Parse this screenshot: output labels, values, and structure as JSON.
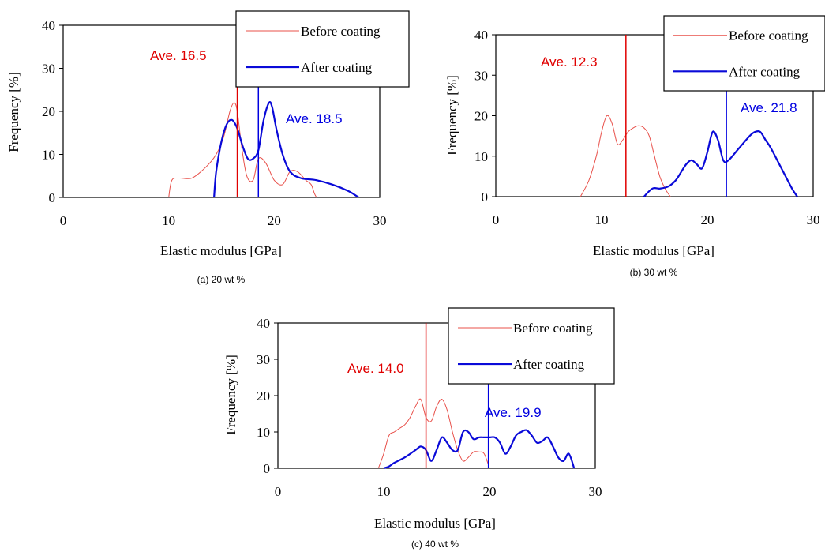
{
  "colors": {
    "before": "#e8504a",
    "after": "#0a0ad8",
    "ave_before": "#e00000",
    "ave_after": "#0000e0"
  },
  "chart_data": [
    {
      "type": "line",
      "caption": "(a) 20 wt %",
      "xlabel": "Elastic modulus [GPa]",
      "ylabel": "Frequency [%]",
      "xlim": [
        0,
        30
      ],
      "ylim": [
        0,
        40
      ],
      "xticks": [
        "0",
        "10",
        "20",
        "30"
      ],
      "yticks": [
        "0",
        "10",
        "20",
        "30",
        "40"
      ],
      "legend": [
        "Before coating",
        "After coating"
      ],
      "annotations": [
        {
          "text": "Ave. 16.5",
          "x": 16.5,
          "series": "before"
        },
        {
          "text": "Ave. 18.5",
          "x": 18.5,
          "series": "after"
        }
      ],
      "series": [
        {
          "name": "Before coating",
          "x": [
            10.0,
            10.3,
            11.0,
            12.2,
            13.5,
            14.5,
            15.2,
            15.8,
            16.2,
            16.5,
            16.9,
            17.4,
            18.0,
            18.5,
            19.2,
            20.0,
            20.8,
            21.5,
            22.2,
            23.0,
            23.5,
            23.8,
            24.0
          ],
          "y": [
            0,
            4,
            4.5,
            4.5,
            7,
            10,
            14,
            20,
            22,
            20,
            12,
            5,
            4,
            9,
            8,
            4,
            3,
            6,
            6,
            4,
            3,
            1,
            0
          ]
        },
        {
          "name": "After coating",
          "x": [
            14.3,
            14.5,
            15.0,
            15.5,
            16.0,
            16.5,
            17.0,
            17.5,
            18.0,
            18.5,
            19.0,
            19.5,
            19.8,
            20.2,
            20.8,
            21.5,
            22.5,
            24.0,
            25.5,
            27.0,
            28.0
          ],
          "y": [
            0,
            6,
            13,
            17,
            18,
            16,
            12,
            9,
            9,
            11,
            18,
            22,
            21,
            16,
            10,
            6,
            4.5,
            4,
            3,
            1.5,
            0
          ]
        }
      ]
    },
    {
      "type": "line",
      "caption": "(b) 30 wt %",
      "xlabel": "Elastic modulus [GPa]",
      "ylabel": "Frequency [%]",
      "xlim": [
        0,
        30
      ],
      "ylim": [
        0,
        40
      ],
      "xticks": [
        "0",
        "10",
        "20",
        "30"
      ],
      "yticks": [
        "0",
        "10",
        "20",
        "30",
        "40"
      ],
      "legend": [
        "Before coating",
        "After coating"
      ],
      "annotations": [
        {
          "text": "Ave. 12.3",
          "x": 12.3,
          "series": "before"
        },
        {
          "text": "Ave. 21.8",
          "x": 21.8,
          "series": "after"
        }
      ],
      "series": [
        {
          "name": "Before coating",
          "x": [
            8.0,
            8.8,
            9.5,
            10.0,
            10.5,
            11.0,
            11.5,
            12.0,
            12.5,
            13.0,
            13.5,
            14.0,
            14.5,
            15.0,
            15.5,
            16.0,
            16.5
          ],
          "y": [
            0,
            4,
            10,
            16,
            20,
            18,
            13,
            14,
            16,
            17,
            17.5,
            17,
            15,
            10,
            5,
            2,
            0
          ]
        },
        {
          "name": "After coating",
          "x": [
            14.0,
            14.8,
            15.5,
            16.3,
            17.0,
            17.5,
            18.0,
            18.5,
            19.0,
            19.5,
            20.0,
            20.5,
            21.0,
            21.5,
            22.0,
            23.0,
            24.0,
            24.5,
            25.0,
            25.5,
            26.0,
            27.0,
            28.0,
            28.5
          ],
          "y": [
            0,
            2,
            2,
            2.5,
            4,
            6,
            8,
            9,
            8,
            7,
            11,
            16,
            14,
            9,
            9,
            12,
            15,
            16,
            16,
            14,
            12,
            7,
            2,
            0
          ]
        }
      ]
    },
    {
      "type": "line",
      "caption": "(c) 40 wt %",
      "xlabel": "Elastic modulus [GPa]",
      "ylabel": "Frequency [%]",
      "xlim": [
        0,
        30
      ],
      "ylim": [
        0,
        40
      ],
      "xticks": [
        "0",
        "10",
        "20",
        "30"
      ],
      "yticks": [
        "0",
        "10",
        "20",
        "30",
        "40"
      ],
      "legend": [
        "Before coating",
        "After coating"
      ],
      "annotations": [
        {
          "text": "Ave. 14.0",
          "x": 14.0,
          "series": "before"
        },
        {
          "text": "Ave. 19.9",
          "x": 19.9,
          "series": "after"
        }
      ],
      "series": [
        {
          "name": "Before coating",
          "x": [
            9.5,
            10.0,
            10.5,
            11.0,
            11.5,
            12.0,
            12.5,
            13.0,
            13.5,
            14.0,
            14.5,
            15.0,
            15.5,
            16.0,
            16.5,
            17.0,
            17.5,
            18.0,
            18.5,
            19.0,
            19.5,
            20.0
          ],
          "y": [
            0,
            4,
            9,
            10,
            11,
            12,
            14,
            17,
            19,
            14,
            13,
            17,
            19,
            16,
            10,
            5,
            2,
            3,
            4.5,
            4.5,
            4,
            0
          ]
        },
        {
          "name": "After coating",
          "x": [
            10.0,
            10.5,
            11.0,
            12.0,
            13.0,
            13.5,
            14.0,
            14.5,
            15.0,
            15.5,
            16.0,
            16.5,
            17.0,
            17.5,
            18.0,
            18.5,
            19.0,
            19.5,
            20.0,
            20.5,
            21.0,
            21.5,
            22.0,
            22.5,
            23.0,
            23.5,
            24.0,
            24.5,
            25.0,
            25.5,
            26.0,
            26.5,
            27.0,
            27.5,
            28.0
          ],
          "y": [
            0,
            0.5,
            1.5,
            3,
            5,
            6,
            5,
            2,
            5,
            8.5,
            7,
            5,
            5,
            10,
            10,
            8,
            8.5,
            8.5,
            8.5,
            8.5,
            7,
            4,
            6,
            9,
            10,
            10.5,
            9,
            7,
            7.5,
            8.5,
            6,
            3,
            2,
            4,
            0
          ]
        }
      ]
    }
  ]
}
